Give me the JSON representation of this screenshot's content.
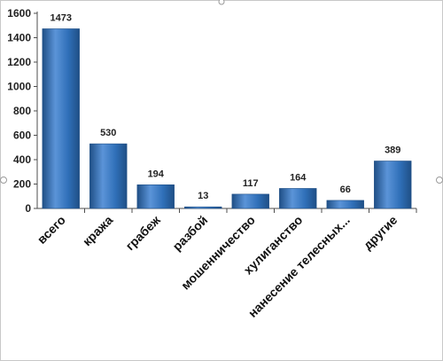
{
  "chart_data": {
    "type": "bar",
    "categories": [
      "всего",
      "кража",
      "грабеж",
      "разбой",
      "мошенничество",
      "хулиганство",
      "нанесение телесных...",
      "другие"
    ],
    "values": [
      1473,
      530,
      194,
      13,
      117,
      164,
      66,
      389
    ],
    "data_labels": [
      "1473",
      "530",
      "194",
      "13",
      "117",
      "164",
      "66",
      "389"
    ],
    "title": "",
    "xlabel": "",
    "ylabel": "",
    "ylim": [
      0,
      1600
    ],
    "yticks": [
      0,
      200,
      400,
      600,
      800,
      1000,
      1200,
      1400,
      1600
    ],
    "ytick_labels": [
      "0",
      "200",
      "400",
      "600",
      "800",
      "1000",
      "1200",
      "1400",
      "1600"
    ],
    "grid": false,
    "legend": "none",
    "bar_color": "#2f6fb8",
    "bar_highlight_color": "#5b94d8",
    "bar_shadow_color": "#1f4f86"
  }
}
